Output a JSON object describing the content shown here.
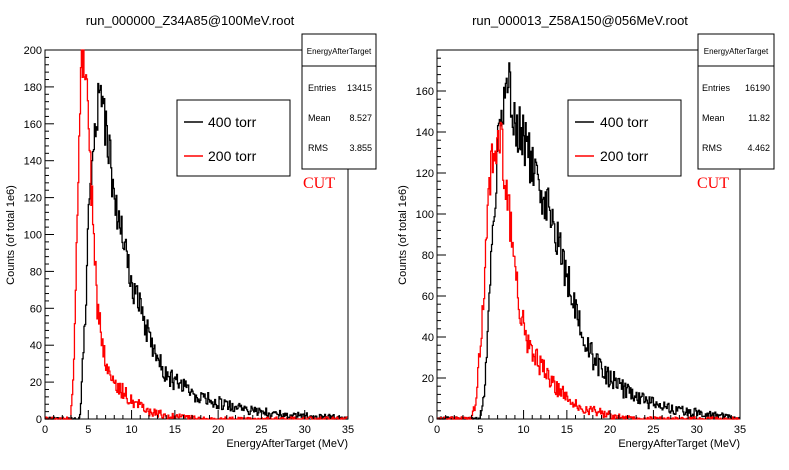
{
  "chart_data": [
    {
      "type": "line",
      "title": "run_000000_Z34A85@100MeV.root",
      "xlabel": "EnergyAfterTarget (MeV)",
      "ylabel": "Counts (of total 1e6)",
      "xlim": [
        0,
        35
      ],
      "ylim": [
        0,
        200
      ],
      "xticks": [
        "0",
        "5",
        "10",
        "15",
        "20",
        "25",
        "30",
        "35"
      ],
      "yticks": [
        "0",
        "20",
        "40",
        "60",
        "80",
        "100",
        "120",
        "140",
        "160",
        "180",
        "200"
      ],
      "stats": {
        "title": "EnergyAfterTarget",
        "rows": [
          {
            "label": "Entries",
            "value": "13415"
          },
          {
            "label": "Mean",
            "value": "8.527"
          },
          {
            "label": "RMS",
            "value": "3.855"
          }
        ]
      },
      "legend": {
        "entries": [
          "400 torr",
          "200 torr"
        ]
      },
      "annotation": "CUT",
      "series": [
        {
          "name": "400 torr",
          "color": "#000000",
          "x": [
            3.0,
            4.0,
            4.5,
            5.0,
            5.3,
            5.6,
            6.0,
            6.5,
            7.0,
            7.5,
            8.0,
            8.5,
            9.0,
            10.0,
            11.0,
            12.0,
            13.0,
            14.0,
            15.0,
            16.0,
            17.0,
            18.0,
            20.0,
            22.0,
            25.0,
            28.0,
            30.0,
            32.0,
            34.0
          ],
          "y": [
            0,
            0,
            40,
            100,
            135,
            155,
            168,
            170,
            160,
            140,
            125,
            110,
            95,
            75,
            60,
            45,
            33,
            25,
            20,
            17,
            14,
            12,
            9,
            6,
            4,
            2,
            2,
            1,
            1
          ]
        },
        {
          "name": "200 torr",
          "color": "#ff0000",
          "x": [
            2.0,
            3.0,
            3.4,
            3.7,
            4.0,
            4.3,
            4.5,
            4.8,
            5.0,
            5.3,
            5.6,
            6.0,
            6.5,
            7.0,
            7.5,
            8.0,
            9.0,
            10.0,
            11.0,
            12.0,
            14.0,
            16.0,
            18.0,
            20.0
          ],
          "y": [
            0,
            0,
            40,
            100,
            160,
            195,
            200,
            192,
            175,
            135,
            95,
            65,
            45,
            30,
            22,
            18,
            15,
            10,
            7,
            4,
            2,
            1,
            0,
            0
          ]
        }
      ]
    },
    {
      "type": "line",
      "title": "run_000013_Z58A150@056MeV.root",
      "xlabel": "EnergyAfterTarget (MeV)",
      "ylabel": "Counts  (of total 1e6)",
      "xlim": [
        0,
        35
      ],
      "ylim": [
        0,
        180
      ],
      "xticks": [
        "0",
        "5",
        "10",
        "15",
        "20",
        "25",
        "30",
        "35"
      ],
      "yticks": [
        "0",
        "20",
        "40",
        "60",
        "80",
        "100",
        "120",
        "140",
        "160"
      ],
      "stats": {
        "title": "EnergyAfterTarget",
        "rows": [
          {
            "label": "Entries",
            "value": "16190"
          },
          {
            "label": "Mean",
            "value": "11.82"
          },
          {
            "label": "RMS",
            "value": "4.462"
          }
        ]
      },
      "legend": {
        "entries": [
          "400 torr",
          "200 torr"
        ]
      },
      "annotation": "CUT",
      "series": [
        {
          "name": "400 torr",
          "color": "#000000",
          "x": [
            4.0,
            5.0,
            5.5,
            6.0,
            6.5,
            7.0,
            7.5,
            8.0,
            8.5,
            9.0,
            10.0,
            11.0,
            12.0,
            13.0,
            14.0,
            15.0,
            16.0,
            17.0,
            18.0,
            20.0,
            22.0,
            24.0,
            26.0,
            28.0,
            30.0,
            32.0,
            34.0
          ],
          "y": [
            0,
            0,
            15,
            50,
            95,
            130,
            150,
            165,
            160,
            145,
            135,
            125,
            110,
            100,
            85,
            70,
            55,
            40,
            30,
            20,
            13,
            9,
            6,
            4,
            3,
            2,
            1
          ]
        },
        {
          "name": "200 torr",
          "color": "#ff0000",
          "x": [
            3.0,
            4.0,
            4.5,
            5.0,
            5.5,
            6.0,
            6.5,
            7.0,
            7.3,
            7.6,
            8.0,
            8.5,
            9.0,
            9.5,
            10.0,
            11.0,
            12.0,
            13.0,
            14.0,
            15.0,
            17.0,
            19.0,
            21.0,
            23.0
          ],
          "y": [
            0,
            0,
            10,
            35,
            70,
            110,
            128,
            140,
            138,
            128,
            115,
            95,
            75,
            58,
            45,
            32,
            25,
            20,
            15,
            10,
            5,
            3,
            1,
            0
          ]
        }
      ]
    }
  ]
}
